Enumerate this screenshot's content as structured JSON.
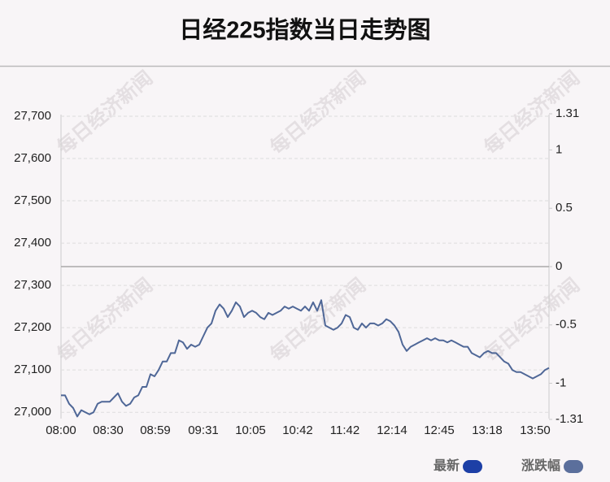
{
  "chart_data": {
    "type": "line",
    "title": "日经225指数当日走势图",
    "watermark": "每日经济新闻",
    "series": [
      {
        "name": "最新",
        "color": "#4f6797",
        "values": [
          27040,
          27040,
          27020,
          27010,
          26990,
          27005,
          27000,
          26995,
          27000,
          27020,
          27025,
          27025,
          27025,
          27035,
          27045,
          27025,
          27015,
          27020,
          27035,
          27040,
          27060,
          27060,
          27090,
          27085,
          27100,
          27120,
          27120,
          27140,
          27140,
          27170,
          27165,
          27150,
          27160,
          27155,
          27160,
          27180,
          27200,
          27210,
          27240,
          27255,
          27245,
          27225,
          27240,
          27260,
          27250,
          27225,
          27235,
          27240,
          27235,
          27225,
          27220,
          27235,
          27230,
          27235,
          27240,
          27250,
          27245,
          27250,
          27245,
          27240,
          27250,
          27240,
          27260,
          27240,
          27265,
          27205,
          27200,
          27195,
          27200,
          27210,
          27230,
          27225,
          27200,
          27195,
          27210,
          27200,
          27210,
          27210,
          27205,
          27210,
          27220,
          27215,
          27205,
          27190,
          27160,
          27145,
          27155,
          27160,
          27165,
          27170,
          27175,
          27170,
          27175,
          27170,
          27170,
          27165,
          27170,
          27165,
          27160,
          27155,
          27155,
          27140,
          27135,
          27130,
          27140,
          27145,
          27140,
          27140,
          27130,
          27120,
          27115,
          27100,
          27095,
          27095,
          27090,
          27085,
          27080,
          27085,
          27090,
          27100,
          27105
        ]
      }
    ],
    "legend": [
      {
        "name": "最新",
        "color": "#1d3fa6"
      },
      {
        "name": "涨跌幅",
        "color": "#5b6f9c"
      }
    ],
    "xlim": [
      0,
      120
    ],
    "xticks": [
      {
        "value": 0,
        "label": "08:00"
      },
      {
        "value": 11.6,
        "label": "08:30"
      },
      {
        "value": 23.2,
        "label": "08:59"
      },
      {
        "value": 35,
        "label": "09:31"
      },
      {
        "value": 46.6,
        "label": "10:05"
      },
      {
        "value": 58.2,
        "label": "10:42"
      },
      {
        "value": 69.8,
        "label": "11:42"
      },
      {
        "value": 81.4,
        "label": "12:14"
      },
      {
        "value": 93,
        "label": "12:45"
      },
      {
        "value": 104.8,
        "label": "13:18"
      },
      {
        "value": 116.6,
        "label": "13:50"
      }
    ],
    "ylim": [
      26985,
      27700
    ],
    "yticks": [
      {
        "value": 27000,
        "label": "27,000"
      },
      {
        "value": 27100,
        "label": "27,100"
      },
      {
        "value": 27200,
        "label": "27,200"
      },
      {
        "value": 27300,
        "label": "27,300"
      },
      {
        "value": 27400,
        "label": "27,400"
      },
      {
        "value": 27500,
        "label": "27,500"
      },
      {
        "value": 27600,
        "label": "27,600"
      },
      {
        "value": 27700,
        "label": "27,700"
      }
    ],
    "y2lim": [
      -1.31,
      1.31
    ],
    "y2ticks": [
      -1.31,
      -1,
      -0.5,
      0,
      0.5,
      1,
      1.31
    ],
    "y2_reference": 0,
    "grid": true
  }
}
